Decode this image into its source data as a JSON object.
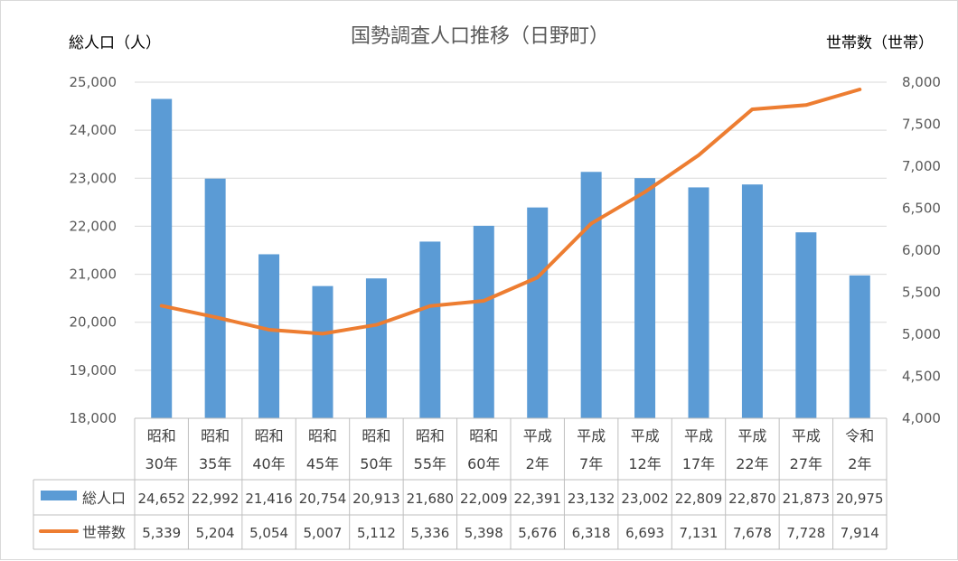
{
  "chart_data": {
    "type": "bar+line",
    "title": "国勢調査人口推移（日野町）",
    "left_axis_label": "総人口（人）",
    "right_axis_label": "世帯数（世帯）",
    "categories": [
      [
        "昭和",
        "30年"
      ],
      [
        "昭和",
        "35年"
      ],
      [
        "昭和",
        "40年"
      ],
      [
        "昭和",
        "45年"
      ],
      [
        "昭和",
        "50年"
      ],
      [
        "昭和",
        "55年"
      ],
      [
        "昭和",
        "60年"
      ],
      [
        "平成",
        "2年"
      ],
      [
        "平成",
        "7年"
      ],
      [
        "平成",
        "12年"
      ],
      [
        "平成",
        "17年"
      ],
      [
        "平成",
        "22年"
      ],
      [
        "平成",
        "27年"
      ],
      [
        "令和",
        "2年"
      ]
    ],
    "series": [
      {
        "name": "総人口",
        "kind": "bar",
        "axis": "left",
        "color": "#5b9bd5",
        "values": [
          24652,
          22992,
          21416,
          20754,
          20913,
          21680,
          22009,
          22391,
          23132,
          23002,
          22809,
          22870,
          21873,
          20975
        ],
        "labels": [
          "24,652",
          "22,992",
          "21,416",
          "20,754",
          "20,913",
          "21,680",
          "22,009",
          "22,391",
          "23,132",
          "23,002",
          "22,809",
          "22,870",
          "21,873",
          "20,975"
        ]
      },
      {
        "name": "世帯数",
        "kind": "line",
        "axis": "right",
        "color": "#ed7d31",
        "values": [
          5339,
          5204,
          5054,
          5007,
          5112,
          5336,
          5398,
          5676,
          6318,
          6693,
          7131,
          7678,
          7728,
          7914
        ],
        "labels": [
          "5,339",
          "5,204",
          "5,054",
          "5,007",
          "5,112",
          "5,336",
          "5,398",
          "5,676",
          "6,318",
          "6,693",
          "7,131",
          "7,678",
          "7,728",
          "7,914"
        ]
      }
    ],
    "left_axis": {
      "min": 18000,
      "max": 25000,
      "step": 1000,
      "tick_labels": [
        "18,000",
        "19,000",
        "20,000",
        "21,000",
        "22,000",
        "23,000",
        "24,000",
        "25,000"
      ]
    },
    "right_axis": {
      "min": 4000,
      "max": 8000,
      "step": 500,
      "tick_labels": [
        "4,000",
        "4,500",
        "5,000",
        "5,500",
        "6,000",
        "6,500",
        "7,000",
        "7,500",
        "8,000"
      ]
    },
    "grid": true,
    "data_table": true
  }
}
